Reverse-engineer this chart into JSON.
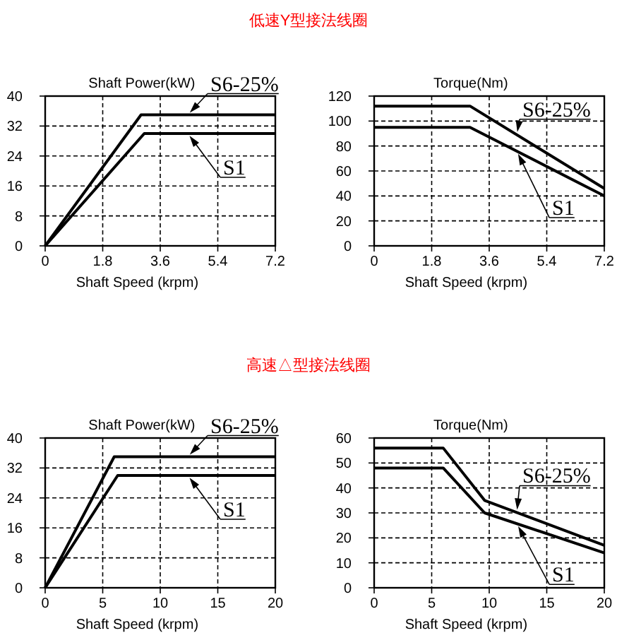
{
  "chart_data": [
    {
      "type": "other",
      "title": "低速Y型接法线圈"
    },
    {
      "type": "line",
      "title": "Shaft Power(kW)",
      "xlabel": "Shaft Speed (krpm)",
      "xlim": [
        0,
        7.2
      ],
      "xticks": [
        0,
        1.8,
        3.6,
        5.4,
        7.2
      ],
      "ylim": [
        0,
        40
      ],
      "yticks": [
        0,
        8,
        16,
        24,
        32,
        40
      ],
      "grid": true,
      "series": [
        {
          "name": "S6-25%",
          "color": "#000000",
          "x": [
            0,
            3,
            7.2
          ],
          "values": [
            0,
            35,
            35
          ]
        },
        {
          "name": "S1",
          "color": "#000000",
          "x": [
            0,
            3.1,
            7.2
          ],
          "values": [
            0,
            30,
            30
          ]
        }
      ]
    },
    {
      "type": "line",
      "title": "Torque(Nm)",
      "xlabel": "Shaft Speed (krpm)",
      "xlim": [
        0,
        7.2
      ],
      "xticks": [
        0,
        1.8,
        3.6,
        5.4,
        7.2
      ],
      "ylim": [
        0,
        120
      ],
      "yticks": [
        0,
        20,
        40,
        60,
        80,
        100,
        120
      ],
      "grid": true,
      "series": [
        {
          "name": "S6-25%",
          "color": "#000000",
          "x": [
            0,
            3,
            7.2
          ],
          "values": [
            112,
            112,
            46
          ]
        },
        {
          "name": "S1",
          "color": "#000000",
          "x": [
            0,
            3,
            7.2
          ],
          "values": [
            95,
            95,
            40
          ]
        }
      ]
    },
    {
      "type": "other",
      "title": "高速△型接法线圈"
    },
    {
      "type": "line",
      "title": "Shaft Power(kW)",
      "xlabel": "Shaft Speed (krpm)",
      "xlim": [
        0,
        20
      ],
      "xticks": [
        0,
        5,
        10,
        15,
        20
      ],
      "ylim": [
        0,
        40
      ],
      "yticks": [
        0,
        8,
        16,
        24,
        32,
        40
      ],
      "grid": true,
      "series": [
        {
          "name": "S6-25%",
          "color": "#000000",
          "x": [
            0,
            6,
            20
          ],
          "values": [
            0,
            35,
            35
          ]
        },
        {
          "name": "S1",
          "color": "#000000",
          "x": [
            0,
            6.3,
            20
          ],
          "values": [
            0,
            30,
            30
          ]
        }
      ]
    },
    {
      "type": "line",
      "title": "Torque(Nm)",
      "xlabel": "Shaft Speed (krpm)",
      "xlim": [
        0,
        20
      ],
      "xticks": [
        0,
        5,
        10,
        15,
        20
      ],
      "ylim": [
        0,
        60
      ],
      "yticks": [
        0,
        10,
        20,
        30,
        40,
        50,
        60
      ],
      "grid": true,
      "series": [
        {
          "name": "S6-25%",
          "color": "#000000",
          "x": [
            0,
            6,
            9.6,
            20
          ],
          "values": [
            56,
            56,
            35,
            17
          ]
        },
        {
          "name": "S1",
          "color": "#000000",
          "x": [
            0,
            6,
            9.6,
            20
          ],
          "values": [
            48,
            48,
            30,
            14
          ]
        }
      ]
    }
  ]
}
